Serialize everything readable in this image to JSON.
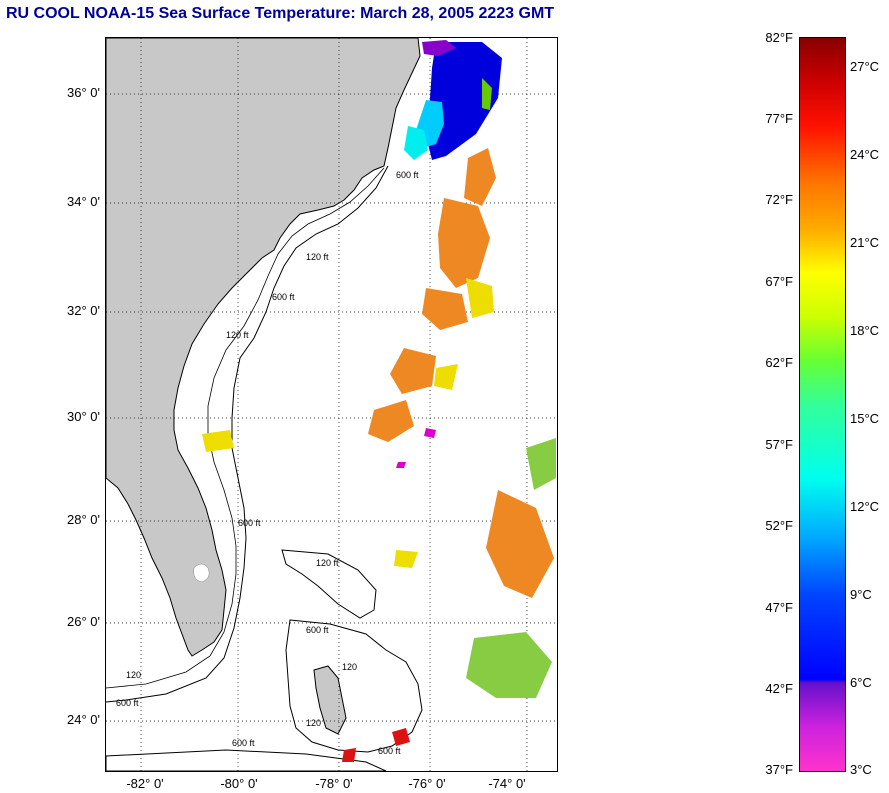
{
  "title": "RU COOL  NOAA-15  Sea Surface Temperature:  March 28, 2005 2223 GMT",
  "map": {
    "lat_labels": [
      "36° 0'",
      "34° 0'",
      "32° 0'",
      "30° 0'",
      "28° 0'",
      "26° 0'",
      "24° 0'"
    ],
    "lon_labels": [
      "-82° 0'",
      "-80° 0'",
      "-78° 0'",
      "-76° 0'",
      "-74° 0'"
    ],
    "contour_labels": [
      "600 ft",
      "120 ft",
      "600 ft",
      "120 ft",
      "600 ft",
      "120 ft",
      "600 ft",
      "600 ft",
      "120",
      "120",
      "600 ft",
      "120",
      "600 ft"
    ],
    "land_color": "#c8c8c8",
    "gridlines": "dotted"
  },
  "colorbar": {
    "fahrenheit": [
      "82°F",
      "77°F",
      "72°F",
      "67°F",
      "62°F",
      "57°F",
      "52°F",
      "47°F",
      "42°F",
      "37°F"
    ],
    "celsius": [
      "27°C",
      "24°C",
      "21°C",
      "18°C",
      "15°C",
      "12°C",
      "9°C",
      "6°C",
      "3°C"
    ],
    "range_f": [
      37,
      82
    ],
    "range_c": [
      3,
      28
    ]
  }
}
